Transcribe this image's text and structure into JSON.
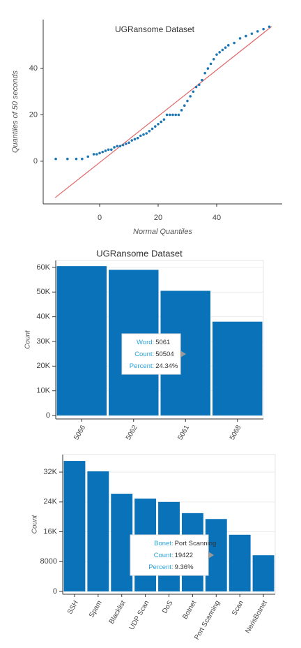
{
  "chart_data": [
    {
      "type": "scatter",
      "title": "UGRansome Dataset",
      "x_label": "Normal Quantiles",
      "y_label": "Quantiles of 50 seconds",
      "points": {
        "color": "#1f77b4",
        "x": [
          -15,
          -11,
          -8,
          -6,
          -4,
          -2,
          -1,
          0,
          1,
          2,
          3,
          4,
          5,
          6,
          7,
          8,
          9,
          10,
          11,
          12,
          13,
          14,
          15,
          16,
          17,
          18,
          19,
          20,
          21,
          22,
          23,
          24,
          25,
          26,
          27,
          28,
          29,
          30,
          31,
          32,
          33,
          34,
          35,
          36,
          37,
          38,
          39,
          40,
          41,
          42,
          43,
          44,
          46,
          48,
          50,
          52,
          54,
          56,
          58
        ],
        "y": [
          1,
          1,
          1,
          1,
          2,
          3,
          3,
          3.5,
          4,
          4.5,
          5,
          5,
          6,
          6.5,
          6.5,
          7,
          7.5,
          8,
          9,
          9.5,
          10,
          11,
          11.5,
          12,
          13,
          14,
          15,
          16,
          17,
          18,
          20,
          20,
          20,
          20,
          20,
          22,
          24,
          26,
          28,
          30,
          32,
          33,
          35,
          38,
          40,
          42,
          44,
          46,
          47,
          48,
          49,
          50,
          51,
          53,
          54,
          55,
          56,
          57,
          58
        ]
      },
      "reference_line": {
        "color": "#e06666",
        "x": [
          -15.2,
          58.8
        ],
        "y": [
          -15.7,
          58.1
        ]
      },
      "xlim": [
        -19.3,
        62.4
      ],
      "ylim": [
        -18.4,
        61.1
      ],
      "xticks": [
        0,
        20,
        40
      ],
      "yticks": [
        0,
        20,
        40
      ]
    },
    {
      "type": "bar",
      "title": "UGRansome Dataset",
      "y_label": "Count",
      "color": "#0a72b8",
      "categories": [
        "5066",
        "5062",
        "5061",
        "5068"
      ],
      "values": [
        60500,
        59000,
        50504,
        38000
      ],
      "ylim": [
        -1400,
        62800
      ],
      "grid": true,
      "yticks": [
        0,
        {
          "value": 10000,
          "label": "10K"
        },
        {
          "value": 20000,
          "label": "20K"
        },
        {
          "value": 30000,
          "label": "30K"
        },
        {
          "value": 40000,
          "label": "40K"
        },
        {
          "value": 50000,
          "label": "50K"
        },
        {
          "value": 60000,
          "label": "60K"
        }
      ],
      "tooltip": [
        {
          "label": "Word:",
          "value": "5061"
        },
        {
          "label": "Count:",
          "value": "50504"
        },
        {
          "label": "Percent:",
          "value": "24.34%"
        }
      ]
    },
    {
      "type": "bar",
      "y_label": "Count",
      "color": "#0a72b8",
      "categories": [
        "SSH",
        "Spam",
        "Blacklist",
        "UDP Scan",
        "DoS",
        "Botnet",
        "Port Scanning",
        "Scan",
        "NerisBotnet"
      ],
      "values": [
        35000,
        32200,
        26200,
        24900,
        24000,
        21000,
        19422,
        15200,
        9700
      ],
      "ylim": [
        -750,
        36700
      ],
      "grid": true,
      "yticks": [
        0,
        8000,
        {
          "value": 16000,
          "label": "16K"
        },
        {
          "value": 24000,
          "label": "24K"
        },
        {
          "value": 32000,
          "label": "32K"
        }
      ],
      "tooltip": [
        {
          "label": "Bonet:",
          "value": "Port Scanning"
        },
        {
          "label": "Count:",
          "value": "19422"
        },
        {
          "label": "Percent:",
          "value": "9.36%"
        }
      ]
    }
  ]
}
